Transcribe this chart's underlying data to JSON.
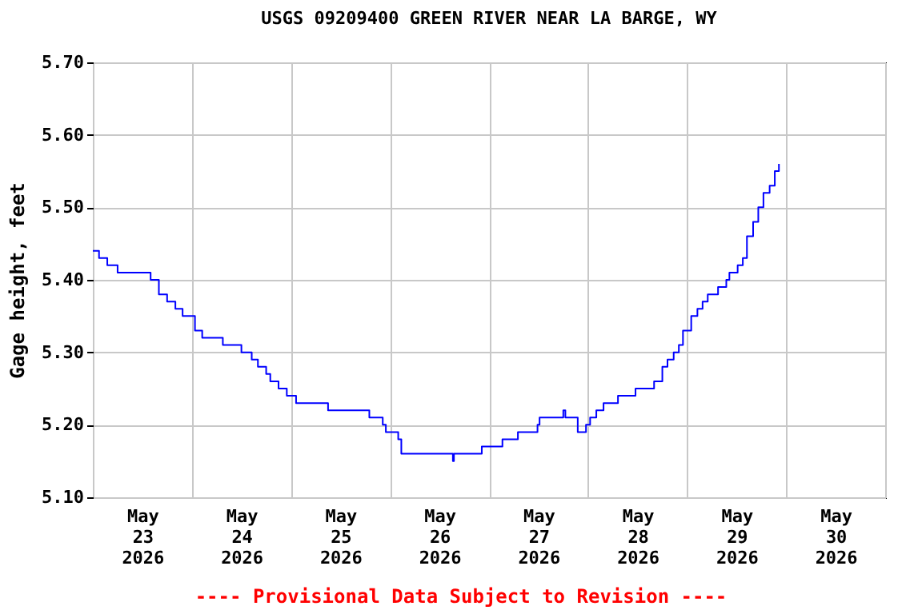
{
  "chart_data": {
    "type": "step",
    "title": "USGS 09209400 GREEN RIVER NEAR LA BARGE, WY",
    "ylabel": "Gage height, feet",
    "annotations": [
      "---- Provisional Data Subject to Revision ----"
    ],
    "series": [
      {
        "color": "#0000ff",
        "x": [
          "2026-05-23T00:00",
          "2026-05-23T01:30",
          "2026-05-23T03:30",
          "2026-05-23T06:00",
          "2026-05-23T12:45",
          "2026-05-23T14:00",
          "2026-05-23T16:00",
          "2026-05-23T18:00",
          "2026-05-23T20:00",
          "2026-05-23T21:45",
          "2026-05-24T00:45",
          "2026-05-24T02:30",
          "2026-05-24T06:15",
          "2026-05-24T07:30",
          "2026-05-24T10:30",
          "2026-05-24T12:00",
          "2026-05-24T14:30",
          "2026-05-24T16:00",
          "2026-05-24T18:00",
          "2026-05-24T19:00",
          "2026-05-24T21:00",
          "2026-05-24T23:00",
          "2026-05-25T01:15",
          "2026-05-25T08:30",
          "2026-05-25T09:00",
          "2026-05-25T18:15",
          "2026-05-25T19:00",
          "2026-05-25T22:15",
          "2026-05-25T23:00",
          "2026-05-26T02:00",
          "2026-05-26T02:45",
          "2026-05-26T14:45",
          "2026-05-26T15:15",
          "2026-05-26T15:30",
          "2026-05-26T22:15",
          "2026-05-27T03:15",
          "2026-05-27T07:00",
          "2026-05-27T11:45",
          "2026-05-27T12:15",
          "2026-05-27T18:00",
          "2026-05-27T18:30",
          "2026-05-27T21:30",
          "2026-05-27T23:30",
          "2026-05-28T00:30",
          "2026-05-28T02:00",
          "2026-05-28T03:45",
          "2026-05-28T07:15",
          "2026-05-28T11:30",
          "2026-05-28T16:00",
          "2026-05-28T18:00",
          "2026-05-28T19:15",
          "2026-05-28T20:45",
          "2026-05-28T22:00",
          "2026-05-28T23:00",
          "2026-05-29T01:00",
          "2026-05-29T02:30",
          "2026-05-29T03:45",
          "2026-05-29T05:00",
          "2026-05-29T07:30",
          "2026-05-29T09:30",
          "2026-05-29T10:15",
          "2026-05-29T12:15",
          "2026-05-29T13:30",
          "2026-05-29T14:30",
          "2026-05-29T16:00",
          "2026-05-29T17:15",
          "2026-05-29T18:30",
          "2026-05-29T20:00",
          "2026-05-29T21:15",
          "2026-05-29T22:15"
        ],
        "values": [
          5.44,
          5.43,
          5.42,
          5.41,
          5.41,
          5.4,
          5.38,
          5.37,
          5.36,
          5.35,
          5.33,
          5.32,
          5.32,
          5.31,
          5.31,
          5.3,
          5.29,
          5.28,
          5.27,
          5.26,
          5.25,
          5.24,
          5.23,
          5.23,
          5.22,
          5.22,
          5.21,
          5.2,
          5.19,
          5.18,
          5.16,
          5.16,
          5.15,
          5.16,
          5.17,
          5.18,
          5.19,
          5.2,
          5.21,
          5.22,
          5.21,
          5.19,
          5.2,
          5.21,
          5.22,
          5.23,
          5.24,
          5.25,
          5.26,
          5.28,
          5.29,
          5.3,
          5.31,
          5.33,
          5.35,
          5.36,
          5.37,
          5.38,
          5.39,
          5.4,
          5.41,
          5.42,
          5.43,
          5.46,
          5.48,
          5.5,
          5.52,
          5.53,
          5.55,
          5.56
        ]
      }
    ],
    "xlim": [
      "2026-05-23",
      "2026-05-31"
    ],
    "xticks": [
      {
        "value": "2026-05-23",
        "label": null
      },
      {
        "value": "2026-05-23T12:00",
        "label": "May\n23\n2026"
      },
      {
        "value": "2026-05-24",
        "label": null
      },
      {
        "value": "2026-05-24T12:00",
        "label": "May\n24\n2026"
      },
      {
        "value": "2026-05-25",
        "label": null
      },
      {
        "value": "2026-05-25T12:00",
        "label": "May\n25\n2026"
      },
      {
        "value": "2026-05-26",
        "label": null
      },
      {
        "value": "2026-05-26T12:00",
        "label": "May\n26\n2026"
      },
      {
        "value": "2026-05-27",
        "label": null
      },
      {
        "value": "2026-05-27T12:00",
        "label": "May\n27\n2026"
      },
      {
        "value": "2026-05-28",
        "label": null
      },
      {
        "value": "2026-05-28T12:00",
        "label": "May\n28\n2026"
      },
      {
        "value": "2026-05-29",
        "label": null
      },
      {
        "value": "2026-05-29T12:00",
        "label": "May\n29\n2026"
      },
      {
        "value": "2026-05-30",
        "label": null
      },
      {
        "value": "2026-05-30T12:00",
        "label": "May\n30\n2026"
      },
      {
        "value": "2026-05-31",
        "label": null
      }
    ],
    "ylim": [
      5.1,
      5.7
    ],
    "yticks": [
      {
        "value": 5.1,
        "label": "5.10"
      },
      {
        "value": 5.2,
        "label": "5.20"
      },
      {
        "value": 5.3,
        "label": "5.30"
      },
      {
        "value": 5.4,
        "label": "5.40"
      },
      {
        "value": 5.5,
        "label": "5.50"
      },
      {
        "value": 5.6,
        "label": "5.60"
      },
      {
        "value": 5.7,
        "label": "5.70"
      }
    ],
    "grid": true,
    "line_style": "solid"
  }
}
